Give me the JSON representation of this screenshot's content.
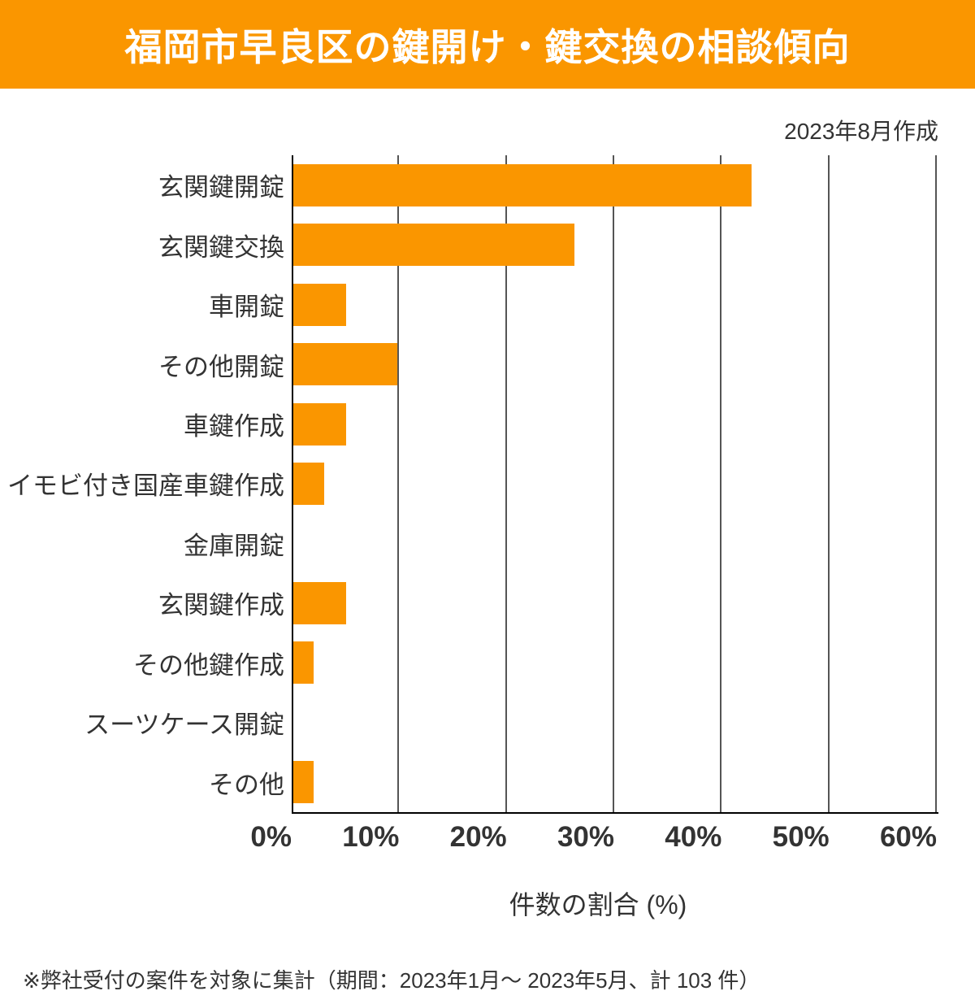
{
  "header": {
    "title": "福岡市早良区の鍵開け・鍵交換の相談傾向",
    "bg_color": "#FA9600",
    "text_color": "#FFFFFF"
  },
  "created_note": "2023年8月作成",
  "chart_data": {
    "type": "bar",
    "orientation": "horizontal",
    "title": "福岡市早良区の鍵開け・鍵交換の相談傾向",
    "categories": [
      "玄関鍵開錠",
      "玄関鍵交換",
      "車開錠",
      "その他開錠",
      "車鍵作成",
      "イモビ付き国産車鍵作成",
      "金庫開錠",
      "玄関鍵作成",
      "その他鍵作成",
      "スーツケース開錠",
      "その他"
    ],
    "values": [
      42.7,
      26.2,
      4.9,
      9.7,
      4.9,
      2.9,
      0,
      4.9,
      1.9,
      0,
      1.9
    ],
    "xlabel": "件数の割合 (%)",
    "ylabel": "",
    "xlim": [
      0,
      60
    ],
    "xticks": [
      "0%",
      "10%",
      "20%",
      "30%",
      "40%",
      "50%",
      "60%"
    ],
    "grid": "vertical",
    "legend": "none",
    "bar_color": "#FA9600",
    "gridline_color": "#555555",
    "axis_color": "#000000"
  },
  "footer_note": "※弊社受付の案件を対象に集計（期間：2023年1月～ 2023年5月、計 103 件）"
}
